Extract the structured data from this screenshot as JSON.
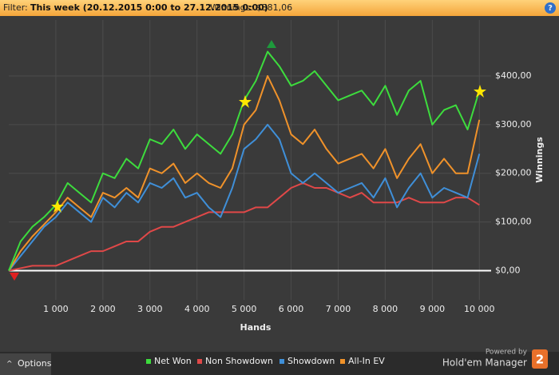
{
  "filter": {
    "label": "Filter:",
    "value": "This week (20.12.2015 0:00 to 27.12.2015 0:00)",
    "winnings": "Winnings: $381,06",
    "help": "?"
  },
  "options": "Options",
  "branding": {
    "powered": "Powered by",
    "product": "Hold'em Manager",
    "version": "2"
  },
  "chart_data": {
    "type": "line",
    "x_label": "Hands",
    "y_label": "Winnings",
    "x": [
      0,
      250,
      500,
      750,
      1000,
      1250,
      1500,
      1750,
      2000,
      2250,
      2500,
      2750,
      3000,
      3250,
      3500,
      3750,
      4000,
      4250,
      4500,
      4750,
      5000,
      5250,
      5500,
      5750,
      6000,
      6250,
      6500,
      6750,
      7000,
      7250,
      7500,
      7750,
      8000,
      8250,
      8500,
      8750,
      9000,
      9250,
      9500,
      9750,
      10000
    ],
    "series": [
      {
        "name": "Net Won",
        "color": "#3ddc3d",
        "values": [
          0,
          60,
          90,
          110,
          135,
          180,
          160,
          140,
          200,
          190,
          230,
          210,
          270,
          260,
          290,
          250,
          280,
          260,
          240,
          280,
          350,
          390,
          450,
          420,
          380,
          390,
          410,
          380,
          350,
          360,
          370,
          340,
          380,
          320,
          370,
          390,
          300,
          330,
          340,
          290,
          370
        ]
      },
      {
        "name": "Non Showdown",
        "color": "#e04848",
        "values": [
          0,
          5,
          10,
          10,
          10,
          20,
          30,
          40,
          40,
          50,
          60,
          60,
          80,
          90,
          90,
          100,
          110,
          120,
          120,
          120,
          120,
          130,
          130,
          150,
          170,
          180,
          170,
          170,
          160,
          150,
          160,
          140,
          140,
          140,
          150,
          140,
          140,
          140,
          150,
          150,
          135
        ]
      },
      {
        "name": "Showdown",
        "color": "#3f8fd8",
        "values": [
          0,
          30,
          60,
          90,
          110,
          140,
          120,
          100,
          150,
          130,
          160,
          140,
          180,
          170,
          190,
          150,
          160,
          130,
          110,
          170,
          250,
          270,
          300,
          270,
          200,
          180,
          200,
          180,
          160,
          170,
          180,
          150,
          190,
          130,
          170,
          200,
          150,
          170,
          160,
          150,
          240
        ]
      },
      {
        "name": "All-In EV",
        "color": "#f0922a",
        "values": [
          0,
          40,
          70,
          95,
          120,
          150,
          130,
          110,
          160,
          150,
          170,
          150,
          210,
          200,
          220,
          180,
          200,
          180,
          170,
          210,
          300,
          330,
          400,
          350,
          280,
          260,
          290,
          250,
          220,
          230,
          240,
          210,
          250,
          190,
          230,
          260,
          200,
          230,
          200,
          200,
          310
        ]
      }
    ],
    "xlim": [
      0,
      10250
    ],
    "ylim": [
      -60,
      515
    ],
    "xticks": [
      {
        "value": 1000,
        "label": "1 000"
      },
      {
        "value": 2000,
        "label": "2 000"
      },
      {
        "value": 3000,
        "label": "3 000"
      },
      {
        "value": 4000,
        "label": "4 000"
      },
      {
        "value": 5000,
        "label": "5 000"
      },
      {
        "value": 6000,
        "label": "6 000"
      },
      {
        "value": 7000,
        "label": "7 000"
      },
      {
        "value": 8000,
        "label": "8 000"
      },
      {
        "value": 9000,
        "label": "9 000"
      },
      {
        "value": 10000,
        "label": "10 000"
      }
    ],
    "yticks": [
      {
        "value": 0,
        "label": "$0,00"
      },
      {
        "value": 100,
        "label": "$100,00"
      },
      {
        "value": 200,
        "label": "$200,00"
      },
      {
        "value": 300,
        "label": "$300,00"
      },
      {
        "value": 400,
        "label": "$400,00"
      }
    ],
    "grid": true,
    "legend": "bottom"
  }
}
